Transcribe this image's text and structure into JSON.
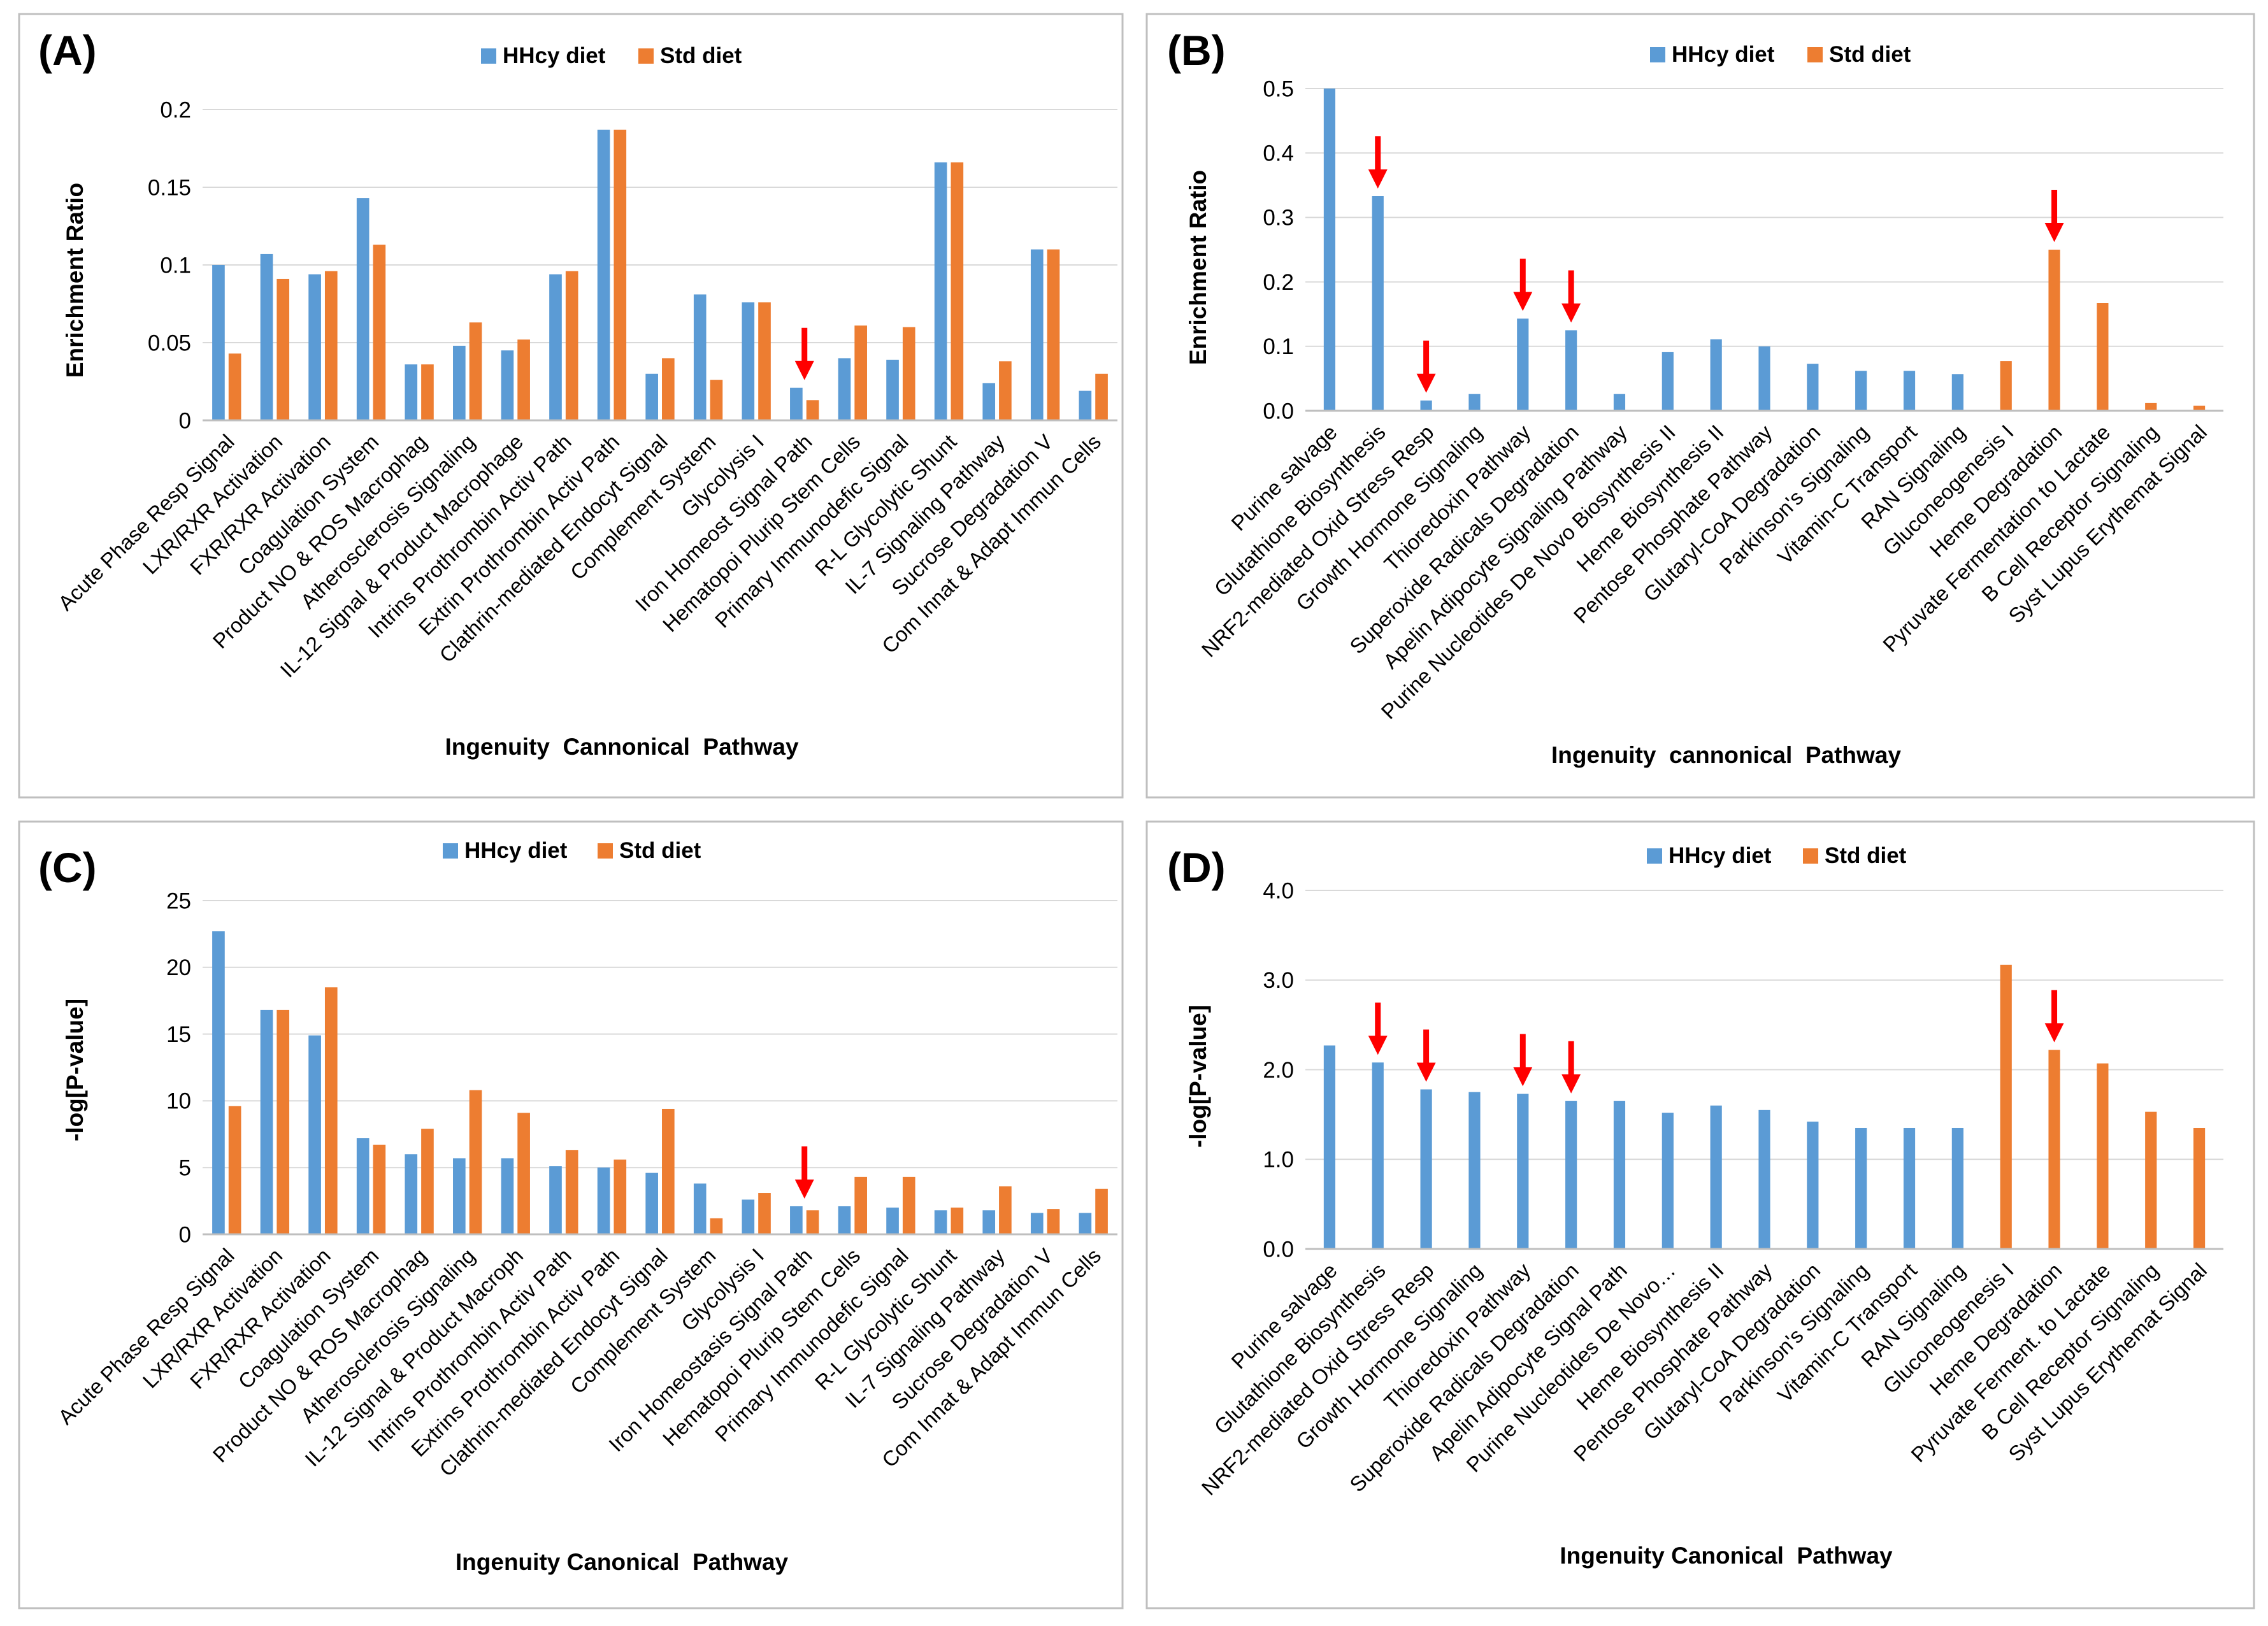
{
  "colors": {
    "hhcy": "#5B9BD5",
    "std": "#ED7D31",
    "arrow": "#FF0000",
    "axis": "#000000",
    "grid": "#D9D9D9",
    "panel_border": "#BFBFBF"
  },
  "chart_data": [
    {
      "type": "bar",
      "panel_label": "(A)",
      "title": "",
      "xlabel": "Ingenuity  Cannonical  Pathway",
      "ylabel": "Enrichment  Ratio",
      "ylim": [
        0,
        0.2
      ],
      "yticks": [
        0,
        0.05,
        0.1,
        0.15,
        0.2
      ],
      "ytick_labels": [
        "0",
        "0.05",
        "0.1",
        "0.15",
        "0.2"
      ],
      "grid": true,
      "legend_position": "top",
      "categories": [
        "Acute Phase Resp Signal",
        "LXR/RXR Activation",
        "FXR/RXR Activation",
        "Coagulation System",
        "Product NO & ROS Macrophag",
        "Atherosclerosis Signaling",
        "IL-12 Signal & Product Macrophage",
        "Intrins Prothrombin Activ Path",
        "Extrin Prothrombin Activ Path",
        "Clathrin-mediated Endocyt Signal",
        "Complement System",
        "Glycolysis I",
        "Iron Homeost Signal Path",
        "Hematopoi Plurip Stem Cells",
        "Primary Immunodefic Signal",
        "R-L Glycolytic Shunt",
        "IL-7 Signaling Pathway",
        "Sucrose Degradation V",
        "Com Innat & Adapt Immun Cells"
      ],
      "series": [
        {
          "name": "HHcy diet",
          "values": [
            0.1,
            0.107,
            0.094,
            0.143,
            0.036,
            0.048,
            0.045,
            0.094,
            0.187,
            0.03,
            0.081,
            0.076,
            0.021,
            0.04,
            0.039,
            0.166,
            0.024,
            0.11,
            0.019
          ]
        },
        {
          "name": "Std diet",
          "values": [
            0.043,
            0.091,
            0.096,
            0.113,
            0.036,
            0.063,
            0.052,
            0.096,
            0.187,
            0.04,
            0.026,
            0.076,
            0.013,
            0.061,
            0.06,
            0.166,
            0.038,
            0.11,
            0.03
          ]
        }
      ],
      "arrows_at": [
        12
      ]
    },
    {
      "type": "bar",
      "panel_label": "(B)",
      "title": "",
      "xlabel": "Ingenuity  cannonical  Pathway",
      "ylabel": "Enrichment  Ratio",
      "ylim": [
        0,
        0.5
      ],
      "yticks": [
        0,
        0.1,
        0.2,
        0.3,
        0.4,
        0.5
      ],
      "ytick_labels": [
        "0.0",
        "0.1",
        "0.2",
        "0.3",
        "0.4",
        "0.5"
      ],
      "grid": true,
      "legend_position": "top",
      "categories": [
        "Purine salvage",
        "Glutathione Biosynthesis",
        "NRF2-mediated Oxid Stress Resp",
        "Growth Hormone Signaling",
        "Thioredoxin Pathway",
        "Superoxide Radicals Degradation",
        "Apelin Adipocyte Signaling Pathway",
        "Purine Nucleotides De Novo Biosynthesis II",
        "Heme Biosynthesis II",
        "Pentose Phosphate Pathway",
        "Glutaryl-CoA Degradation",
        "Parkinson's Signaling",
        "Vitamin-C Transport",
        "RAN Signaling",
        "Gluconeogenesis I",
        "Heme Degradation",
        "Pyruvate Fermentation to Lactate",
        "B Cell Receptor Signaling",
        "Syst Lupus Erythemat Signal"
      ],
      "series": [
        {
          "name": "HHcy diet",
          "values": [
            0.5,
            0.333,
            0.016,
            0.026,
            0.143,
            0.125,
            0.026,
            0.091,
            0.111,
            0.1,
            0.073,
            0.062,
            0.062,
            0.057,
            null,
            null,
            null,
            null,
            null
          ]
        },
        {
          "name": "Std diet",
          "values": [
            null,
            null,
            null,
            null,
            null,
            null,
            null,
            null,
            null,
            null,
            null,
            null,
            null,
            null,
            0.077,
            0.25,
            0.167,
            0.012,
            0.008
          ]
        }
      ],
      "arrows_at": [
        1,
        2,
        4,
        5,
        15
      ]
    },
    {
      "type": "bar",
      "panel_label": "(C)",
      "title": "",
      "xlabel": "Ingenuity Canonical  Pathway",
      "ylabel": "-log[P-value]",
      "ylim": [
        0,
        25
      ],
      "yticks": [
        0,
        5,
        10,
        15,
        20,
        25
      ],
      "ytick_labels": [
        "0",
        "5",
        "10",
        "15",
        "20",
        "25"
      ],
      "grid": true,
      "legend_position": "top",
      "categories": [
        "Acute Phase Resp Signal",
        "LXR/RXR Activation",
        "FXR/RXR Activation",
        "Coagulation System",
        "Product NO & ROS Macrophag",
        "Atherosclerosis Signaling",
        "IL-12 Signal & Product Macroph",
        "Intrins Prothrombin Activ Path",
        "Extrins Prothrombin Activ Path",
        "Clathrin-mediated Endocyt Signal",
        "Complement System",
        "Glycolysis I",
        "Iron Homeostasis Signal Path",
        "Hematopoi Plurip Stem Cells",
        "Primary Immunodefic Signal",
        "R-L Glycolytic Shunt",
        "IL-7 Signaling Pathway",
        "Sucrose Degradation V",
        "Com Innat & Adapt Immun Cells"
      ],
      "series": [
        {
          "name": "HHcy diet",
          "values": [
            22.7,
            16.8,
            14.9,
            7.2,
            6.0,
            5.7,
            5.7,
            5.1,
            5.0,
            4.6,
            3.8,
            2.6,
            2.1,
            2.1,
            2.0,
            1.8,
            1.8,
            1.6,
            1.6
          ]
        },
        {
          "name": "Std diet",
          "values": [
            9.6,
            16.8,
            18.5,
            6.7,
            7.9,
            10.8,
            9.1,
            6.3,
            5.6,
            9.4,
            1.2,
            3.1,
            1.8,
            4.3,
            4.3,
            2.0,
            3.6,
            1.9,
            3.4
          ]
        }
      ],
      "arrows_at": [
        12
      ]
    },
    {
      "type": "bar",
      "panel_label": "(D)",
      "title": "",
      "xlabel": "Ingenuity Canonical  Pathway",
      "ylabel": "-log[P-value]",
      "ylim": [
        0,
        4
      ],
      "yticks": [
        0,
        1,
        2,
        3,
        4
      ],
      "ytick_labels": [
        "0.0",
        "1.0",
        "2.0",
        "3.0",
        "4.0"
      ],
      "grid": true,
      "legend_position": "top",
      "categories": [
        "Purine salvage",
        "Glutathione Biosynthesis",
        "NRF2-mediated Oxid Stress Resp",
        "Growth Hormone Signaling",
        "Thioredoxin Pathway",
        "Superoxide Radicals Degradation",
        "Apelin Adipocyte Signal Path",
        "Purine Nucleotides De Novo…",
        "Heme Biosynthesis II",
        "Pentose Phosphate Pathway",
        "Glutaryl-CoA Degradation",
        "Parkinson's Signaling",
        "Vitamin-C Transport",
        "RAN Signaling",
        "Gluconeogenesis I",
        "Heme Degradation",
        "Pyruvate Ferment. to Lactate",
        "B Cell Receptor Signaling",
        "Syst Lupus Erythemat Signal"
      ],
      "series": [
        {
          "name": "HHcy diet",
          "values": [
            2.27,
            2.08,
            1.78,
            1.75,
            1.73,
            1.65,
            1.65,
            1.52,
            1.6,
            1.55,
            1.42,
            1.35,
            1.35,
            1.35,
            null,
            null,
            null,
            null,
            null
          ]
        },
        {
          "name": "Std diet",
          "values": [
            null,
            null,
            null,
            null,
            null,
            null,
            null,
            null,
            null,
            null,
            null,
            null,
            null,
            null,
            3.17,
            2.22,
            2.07,
            1.53,
            1.35
          ]
        }
      ],
      "arrows_at": [
        1,
        2,
        4,
        5,
        15
      ]
    }
  ]
}
